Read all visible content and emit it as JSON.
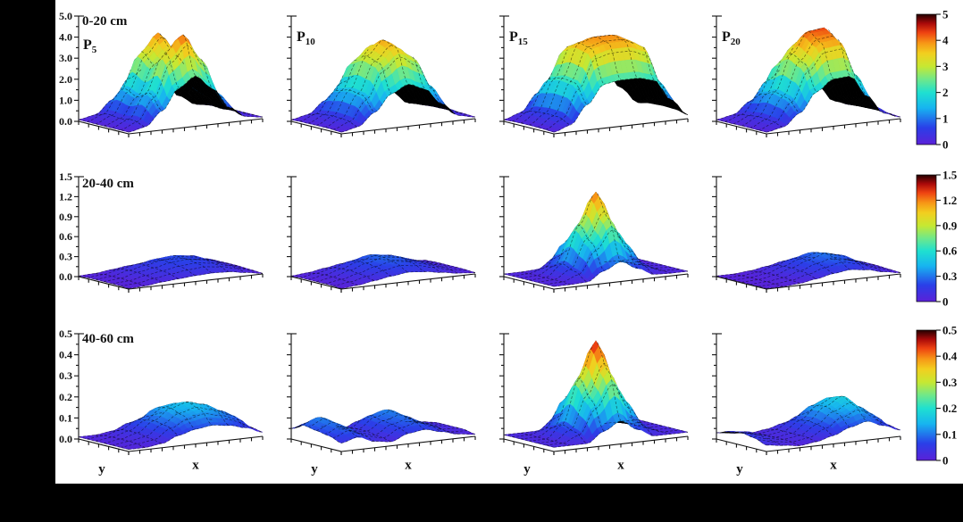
{
  "chart_data": {
    "type": "surface",
    "layout": "3 rows of soil depth x 4 columns of P treatment, 3D surface plots with one shared colorbar per row",
    "x_label": "x",
    "y_label": "y",
    "colormap_stops": [
      [
        0,
        "#5b21d8"
      ],
      [
        0.13,
        "#2a3fe8"
      ],
      [
        0.28,
        "#17b4f0"
      ],
      [
        0.4,
        "#1fe0d0"
      ],
      [
        0.5,
        "#6fe88a"
      ],
      [
        0.6,
        "#c6e832"
      ],
      [
        0.7,
        "#f2cf1f"
      ],
      [
        0.78,
        "#f79616"
      ],
      [
        0.86,
        "#ee4211"
      ],
      [
        0.93,
        "#a90909"
      ],
      [
        1,
        "#230000"
      ]
    ],
    "rows": [
      {
        "depth_label": "0-20 cm",
        "zmax": 5,
        "z_ticks": [
          "0.0",
          "1.0",
          "2.0",
          "3.0",
          "4.0",
          "5.0"
        ],
        "colorbar_ticks_top_to_bottom": [
          "5",
          "4",
          "3",
          "2",
          "1",
          "0"
        ],
        "panels": [
          {
            "label": "P",
            "sub": "5",
            "peak_z": 4.2,
            "grid": [
              [
                0.08,
                0.22,
                0.84,
                1.76,
                2.2,
                1.58,
                0.66,
                0.18,
                0.08
              ],
              [
                0.08,
                0.4,
                1.52,
                3.2,
                4.0,
                2.88,
                1.2,
                0.32,
                0.08
              ],
              [
                0.08,
                0.34,
                1.29,
                2.72,
                3.4,
                2.45,
                1.02,
                0.27,
                0.08
              ],
              [
                0.08,
                0.42,
                1.6,
                3.36,
                4.2,
                3.02,
                1.26,
                0.34,
                0.08
              ],
              [
                0.08,
                0.24,
                0.91,
                1.92,
                2.4,
                1.73,
                0.72,
                0.19,
                0.08
              ]
            ]
          },
          {
            "label": "P",
            "sub": "10",
            "peak_z": 3.8,
            "grid": [
              [
                0.08,
                0.23,
                0.8,
                1.56,
                1.9,
                1.62,
                0.86,
                0.23,
                0.08
              ],
              [
                0.1,
                0.41,
                1.43,
                2.79,
                3.4,
                2.89,
                1.53,
                0.41,
                0.1
              ],
              [
                0.11,
                0.46,
                1.6,
                3.12,
                3.8,
                3.23,
                1.71,
                0.46,
                0.11
              ],
              [
                0.11,
                0.43,
                1.51,
                2.95,
                3.6,
                3.06,
                1.62,
                0.43,
                0.11
              ],
              [
                0.08,
                0.24,
                0.84,
                1.64,
                2.0,
                1.7,
                0.9,
                0.24,
                0.08
              ]
            ]
          },
          {
            "label": "P",
            "sub": "15",
            "peak_z": 3.95,
            "grid": [
              [
                0.08,
                0.32,
                1.16,
                2.0,
                2.1,
                2.1,
                1.93,
                0.95,
                0.17
              ],
              [
                0.11,
                0.54,
                1.98,
                3.42,
                3.6,
                3.6,
                3.31,
                1.62,
                0.29
              ],
              [
                0.12,
                0.59,
                2.17,
                3.75,
                3.95,
                3.95,
                3.63,
                1.78,
                0.32
              ],
              [
                0.11,
                0.57,
                2.09,
                3.61,
                3.8,
                3.8,
                3.5,
                1.71,
                0.3
              ],
              [
                0.08,
                0.33,
                1.21,
                2.09,
                2.2,
                2.2,
                2.02,
                0.99,
                0.18
              ]
            ]
          },
          {
            "label": "P",
            "sub": "20",
            "peak_z": 4.3,
            "grid": [
              [
                0.08,
                0.22,
                0.77,
                1.65,
                2.16,
                2.2,
                1.21,
                0.33,
                0.08
              ],
              [
                0.08,
                0.36,
                1.26,
                2.7,
                3.53,
                3.6,
                1.98,
                0.54,
                0.11
              ],
              [
                0.09,
                0.43,
                1.51,
                3.23,
                4.21,
                4.3,
                2.37,
                0.65,
                0.13
              ],
              [
                0.08,
                0.39,
                1.37,
                2.93,
                3.82,
                3.9,
                2.15,
                0.59,
                0.12
              ],
              [
                0.08,
                0.23,
                0.81,
                1.73,
                2.25,
                2.3,
                1.27,
                0.35,
                0.08
              ]
            ]
          }
        ]
      },
      {
        "depth_label": "20-40 cm",
        "zmax": 1.5,
        "z_ticks": [
          "0.0",
          "0.3",
          "0.6",
          "0.9",
          "1.2",
          "1.5"
        ],
        "colorbar_ticks_top_to_bottom": [
          "1.5",
          "1.2",
          "0.9",
          "0.6",
          "0.3",
          "0"
        ],
        "panels": [
          {
            "label": "P",
            "sub": "5",
            "peak_z": 0.22,
            "grid": [
              [
                0.01,
                0.02,
                0.05,
                0.08,
                0.1,
                0.11,
                0.1,
                0.06,
                0.02
              ],
              [
                0.02,
                0.04,
                0.1,
                0.15,
                0.2,
                0.22,
                0.19,
                0.11,
                0.03
              ],
              [
                0.02,
                0.04,
                0.1,
                0.14,
                0.19,
                0.21,
                0.18,
                0.1,
                0.03
              ],
              [
                0.02,
                0.03,
                0.08,
                0.12,
                0.16,
                0.18,
                0.15,
                0.09,
                0.02
              ],
              [
                0.01,
                0.02,
                0.05,
                0.07,
                0.09,
                0.1,
                0.09,
                0.05,
                0.01
              ]
            ]
          },
          {
            "label": "P",
            "sub": "10",
            "peak_z": 0.27,
            "grid": [
              [
                0.01,
                0.03,
                0.07,
                0.11,
                0.14,
                0.12,
                0.08,
                0.04,
                0.02
              ],
              [
                0.02,
                0.06,
                0.12,
                0.2,
                0.26,
                0.23,
                0.15,
                0.08,
                0.03
              ],
              [
                0.02,
                0.06,
                0.13,
                0.21,
                0.27,
                0.24,
                0.16,
                0.08,
                0.03
              ],
              [
                0.02,
                0.05,
                0.11,
                0.18,
                0.23,
                0.2,
                0.14,
                0.07,
                0.03
              ],
              [
                0.01,
                0.03,
                0.07,
                0.11,
                0.14,
                0.12,
                0.08,
                0.04,
                0.02
              ]
            ]
          },
          {
            "label": "P",
            "sub": "15",
            "peak_z": 1.25,
            "grid": [
              [
                0.04,
                0.04,
                0.05,
                0.19,
                0.3,
                0.17,
                0.05,
                0.04,
                0.04
              ],
              [
                0.04,
                0.05,
                0.14,
                0.5,
                0.8,
                0.44,
                0.14,
                0.04,
                0.04
              ],
              [
                0.04,
                0.05,
                0.23,
                0.78,
                1.25,
                0.69,
                0.23,
                0.06,
                0.04
              ],
              [
                0.04,
                0.05,
                0.16,
                0.56,
                0.9,
                0.5,
                0.16,
                0.05,
                0.04
              ],
              [
                0.04,
                0.04,
                0.05,
                0.19,
                0.3,
                0.17,
                0.05,
                0.04,
                0.04
              ]
            ]
          },
          {
            "label": "P",
            "sub": "20",
            "peak_z": 0.3,
            "grid": [
              [
                0.01,
                0.01,
                0.03,
                0.07,
                0.12,
                0.15,
                0.12,
                0.06,
                0.02
              ],
              [
                0.01,
                0.02,
                0.05,
                0.13,
                0.21,
                0.27,
                0.22,
                0.11,
                0.04
              ],
              [
                0.01,
                0.02,
                0.06,
                0.14,
                0.23,
                0.3,
                0.24,
                0.12,
                0.04
              ],
              [
                0.01,
                0.02,
                0.05,
                0.12,
                0.2,
                0.26,
                0.2,
                0.1,
                0.03
              ],
              [
                0.01,
                0.01,
                0.03,
                0.07,
                0.12,
                0.15,
                0.12,
                0.06,
                0.02
              ]
            ]
          }
        ]
      },
      {
        "depth_label": "40-60 cm",
        "zmax": 0.5,
        "z_ticks": [
          "0.0",
          "0.1",
          "0.2",
          "0.3",
          "0.4",
          "0.5"
        ],
        "colorbar_ticks_top_to_bottom": [
          "0.5",
          "0.4",
          "0.3",
          "0.2",
          "0.1",
          "0"
        ],
        "panels": [
          {
            "label": "P",
            "sub": "5",
            "peak_z": 0.16,
            "grid": [
              [
                0.01,
                0.01,
                0.02,
                0.05,
                0.07,
                0.08,
                0.07,
                0.05,
                0.02
              ],
              [
                0.01,
                0.02,
                0.04,
                0.08,
                0.13,
                0.14,
                0.13,
                0.09,
                0.04
              ],
              [
                0.01,
                0.02,
                0.04,
                0.09,
                0.14,
                0.16,
                0.14,
                0.1,
                0.04
              ],
              [
                0.01,
                0.02,
                0.03,
                0.08,
                0.12,
                0.14,
                0.12,
                0.09,
                0.03
              ],
              [
                0.01,
                0.01,
                0.02,
                0.05,
                0.07,
                0.08,
                0.07,
                0.05,
                0.02
              ]
            ]
          },
          {
            "label": "P",
            "sub": "10",
            "peak_z": 0.11,
            "grid": [
              [
                0.05,
                0.07,
                0.04,
                0.02,
                0.05,
                0.07,
                0.04,
                0.02,
                0.01
              ],
              [
                0.08,
                0.11,
                0.06,
                0.04,
                0.09,
                0.11,
                0.07,
                0.03,
                0.02
              ],
              [
                0.07,
                0.1,
                0.05,
                0.04,
                0.08,
                0.1,
                0.06,
                0.03,
                0.02
              ],
              [
                0.06,
                0.09,
                0.05,
                0.03,
                0.07,
                0.09,
                0.06,
                0.02,
                0.02
              ],
              [
                0.04,
                0.06,
                0.03,
                0.02,
                0.05,
                0.06,
                0.04,
                0.02,
                0.01
              ]
            ]
          },
          {
            "label": "P",
            "sub": "15",
            "peak_z": 0.46,
            "grid": [
              [
                0.02,
                0.02,
                0.02,
                0.07,
                0.11,
                0.06,
                0.02,
                0.02,
                0.02
              ],
              [
                0.02,
                0.02,
                0.05,
                0.19,
                0.3,
                0.17,
                0.05,
                0.02,
                0.02
              ],
              [
                0.02,
                0.02,
                0.08,
                0.29,
                0.46,
                0.25,
                0.08,
                0.02,
                0.02
              ],
              [
                0.02,
                0.02,
                0.06,
                0.2,
                0.33,
                0.18,
                0.06,
                0.02,
                0.02
              ],
              [
                0.02,
                0.02,
                0.02,
                0.07,
                0.11,
                0.06,
                0.02,
                0.02,
                0.02
              ]
            ]
          },
          {
            "label": "P",
            "sub": "20",
            "peak_z": 0.18,
            "grid": [
              [
                0.03,
                0.02,
                0.01,
                0.02,
                0.04,
                0.07,
                0.09,
                0.06,
                0.03
              ],
              [
                0.05,
                0.04,
                0.02,
                0.03,
                0.07,
                0.13,
                0.16,
                0.11,
                0.05
              ],
              [
                0.06,
                0.04,
                0.02,
                0.03,
                0.08,
                0.14,
                0.18,
                0.12,
                0.05
              ],
              [
                0.05,
                0.03,
                0.02,
                0.03,
                0.07,
                0.12,
                0.15,
                0.1,
                0.04
              ],
              [
                0.03,
                0.02,
                0.01,
                0.02,
                0.04,
                0.07,
                0.09,
                0.06,
                0.03
              ]
            ]
          }
        ]
      }
    ]
  }
}
